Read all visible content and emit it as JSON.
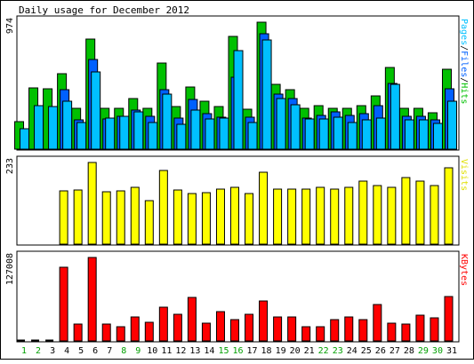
{
  "chart_data": {
    "type": "bar",
    "title": "Daily usage for December 2012",
    "categories": [
      "1",
      "2",
      "3",
      "4",
      "5",
      "6",
      "7",
      "8",
      "9",
      "10",
      "11",
      "12",
      "13",
      "14",
      "15",
      "16",
      "17",
      "18",
      "19",
      "20",
      "21",
      "22",
      "23",
      "24",
      "25",
      "26",
      "27",
      "28",
      "29",
      "30",
      "31"
    ],
    "weekend_days": [
      "1",
      "2",
      "8",
      "9",
      "15",
      "16",
      "22",
      "23",
      "29",
      "30"
    ],
    "panels": [
      {
        "max_label": "974",
        "ymax": 974,
        "legend": [
          {
            "text": "Pages",
            "color": "#00c0ff"
          },
          {
            "text": "/",
            "color": "#000000"
          },
          {
            "text": "Files",
            "color": "#0060ff"
          },
          {
            "text": "/",
            "color": "#000000"
          },
          {
            "text": "Hits",
            "color": "#00c000"
          }
        ],
        "series": [
          {
            "name": "Hits",
            "color": "#00c000",
            "values": [
              213,
              473,
              466,
              582,
              315,
              845,
              315,
              315,
              385,
              315,
              659,
              326,
              480,
              371,
              326,
              864,
              308,
              974,
              500,
              455,
              315,
              337,
              315,
              315,
              332,
              407,
              627,
              315,
              315,
              277,
              610
            ]
          },
          {
            "name": "Files",
            "color": "#0060ff",
            "values": [
              0,
              0,
              0,
              456,
              223,
              690,
              231,
              252,
              297,
              252,
              457,
              238,
              380,
              272,
              247,
              552,
              245,
              887,
              420,
              388,
              238,
              260,
              285,
              262,
              272,
              337,
              502,
              255,
              255,
              223,
              460
            ]
          },
          {
            "name": "Pages",
            "color": "#00c0ff",
            "values": [
              160,
              332,
              324,
              367,
              205,
              593,
              237,
              255,
              285,
              205,
              422,
              191,
              297,
              234,
              240,
              758,
              205,
              839,
              385,
              338,
              233,
              230,
              248,
              205,
              223,
              238,
              495,
              225,
              225,
              196,
              367
            ]
          }
        ]
      },
      {
        "max_label": "233",
        "ymax": 233,
        "legend": [
          {
            "text": "Visits",
            "color": "#e0e000"
          }
        ],
        "series": [
          {
            "name": "Visits",
            "color": "#ffff00",
            "values": [
              0,
              0,
              0,
              152,
              154,
              233,
              150,
              152,
              162,
              123,
              211,
              155,
              144,
              146,
              157,
              162,
              144,
              205,
              157,
              157,
              157,
              163,
              157,
              163,
              179,
              168,
              163,
              189,
              179,
              168,
              218
            ]
          }
        ]
      },
      {
        "max_label": "127008",
        "ymax": 127008,
        "legend": [
          {
            "text": "KBytes",
            "color": "#ff0000"
          }
        ],
        "series": [
          {
            "name": "KBytes",
            "color": "#ff0000",
            "values": [
              0,
              0,
              0,
              112000,
              26000,
              127008,
              25000,
              22000,
              37000,
              28000,
              52000,
              41000,
              66000,
              27000,
              44000,
              33000,
              40000,
              61000,
              36000,
              37000,
              22000,
              22000,
              32000,
              37000,
              32000,
              55000,
              27000,
              26000,
              39000,
              35000,
              68000
            ]
          }
        ]
      }
    ]
  }
}
